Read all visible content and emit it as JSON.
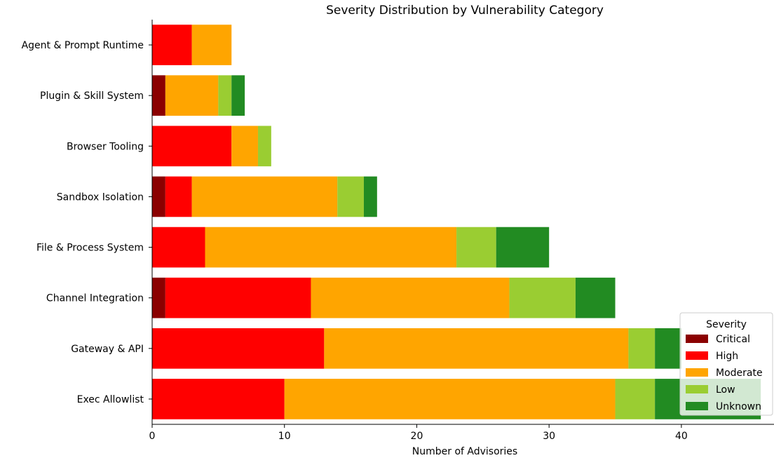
{
  "chart_data": {
    "type": "bar",
    "orientation": "horizontal",
    "stacked": true,
    "title": "Severity Distribution by Vulnerability Category",
    "xlabel": "Number of Advisories",
    "ylabel": "",
    "xlim": [
      0,
      47
    ],
    "xticks": [
      0,
      10,
      20,
      30,
      40
    ],
    "categories": [
      "Exec Allowlist",
      "Gateway & API",
      "Channel Integration",
      "File & Process System",
      "Sandbox Isolation",
      "Browser Tooling",
      "Plugin & Skill System",
      "Agent & Prompt Runtime"
    ],
    "series": [
      {
        "name": "Critical",
        "color": "#8b0000",
        "values": [
          0,
          0,
          1,
          0,
          1,
          0,
          1,
          0
        ]
      },
      {
        "name": "High",
        "color": "#ff0000",
        "values": [
          10,
          13,
          11,
          4,
          2,
          6,
          0,
          3
        ]
      },
      {
        "name": "Moderate",
        "color": "#ffa500",
        "values": [
          25,
          23,
          15,
          19,
          11,
          2,
          4,
          3
        ]
      },
      {
        "name": "Low",
        "color": "#9acd32",
        "values": [
          3,
          2,
          5,
          3,
          2,
          1,
          1,
          0
        ]
      },
      {
        "name": "Unknown",
        "color": "#228b22",
        "values": [
          8,
          2,
          3,
          4,
          1,
          0,
          1,
          0
        ]
      }
    ],
    "legend": {
      "title": "Severity",
      "position": "lower-right"
    },
    "grid": false
  }
}
